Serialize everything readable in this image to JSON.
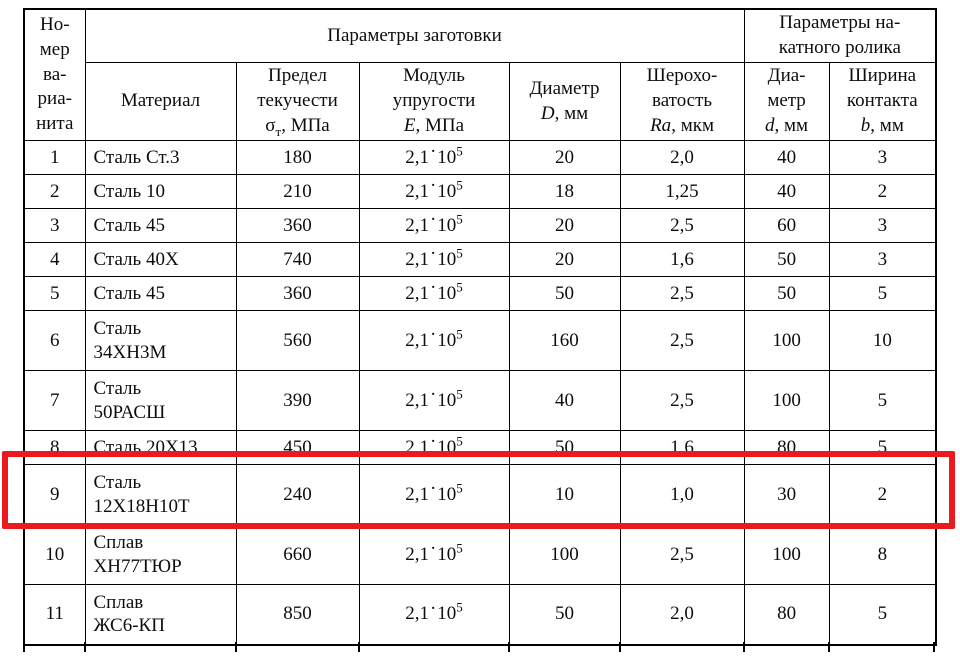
{
  "table": {
    "highlight_color": "#ea1a1f",
    "border_color": "#000000",
    "notation_dot": "·",
    "variant_header": {
      "lines": [
        "Но-",
        "мер",
        "ва-",
        "риа-",
        "нита"
      ]
    },
    "group_headers": [
      {
        "label_lines": [
          "Параметры заготовки"
        ],
        "colspan": 5
      },
      {
        "label_lines": [
          "Параметры на-",
          "катного ролика"
        ],
        "colspan": 2
      }
    ],
    "sub_headers": [
      {
        "lines": [
          "Материал"
        ]
      },
      {
        "lines": [
          "Предел",
          "текучести"
        ],
        "sym": "σ",
        "sym_sub": "т",
        "italic": false,
        "unit": ", МПа"
      },
      {
        "lines": [
          "Модуль",
          "упругости"
        ],
        "sym": "E",
        "italic": true,
        "unit": ", МПа"
      },
      {
        "lines": [
          "Диаметр"
        ],
        "sym": "D",
        "italic": true,
        "unit": ", мм"
      },
      {
        "lines": [
          "Шерохо-",
          "ватость"
        ],
        "sym": "Ra",
        "italic": true,
        "unit": ", мкм"
      },
      {
        "lines": [
          "Диа-",
          "метр"
        ],
        "sym": "d",
        "italic": true,
        "unit": ", мм"
      },
      {
        "lines": [
          "Ширина",
          "контакта"
        ],
        "sym": "b",
        "italic": true,
        "unit": ", мм"
      }
    ],
    "rows": [
      {
        "num": "1",
        "material_lines": [
          "Сталь Ст.3"
        ],
        "yield_strength": "180",
        "modulus": {
          "m": "2,1",
          "x": "10",
          "e": "5"
        },
        "diameter": "20",
        "roughness": "2,0",
        "roller_diameter": "40",
        "contact_width": "3",
        "highlighted": false
      },
      {
        "num": "2",
        "material_lines": [
          "Сталь 10"
        ],
        "yield_strength": "210",
        "modulus": {
          "m": "2,1",
          "x": "10",
          "e": "5"
        },
        "diameter": "18",
        "roughness": "1,25",
        "roller_diameter": "40",
        "contact_width": "2",
        "highlighted": false
      },
      {
        "num": "3",
        "material_lines": [
          "Сталь 45"
        ],
        "yield_strength": "360",
        "modulus": {
          "m": "2,1",
          "x": "10",
          "e": "5"
        },
        "diameter": "20",
        "roughness": "2,5",
        "roller_diameter": "60",
        "contact_width": "3",
        "highlighted": false
      },
      {
        "num": "4",
        "material_lines": [
          "Сталь 40Х"
        ],
        "yield_strength": "740",
        "modulus": {
          "m": "2,1",
          "x": "10",
          "e": "5"
        },
        "diameter": "20",
        "roughness": "1,6",
        "roller_diameter": "50",
        "contact_width": "3",
        "highlighted": false
      },
      {
        "num": "5",
        "material_lines": [
          "Сталь 45"
        ],
        "yield_strength": "360",
        "modulus": {
          "m": "2,1",
          "x": "10",
          "e": "5"
        },
        "diameter": "50",
        "roughness": "2,5",
        "roller_diameter": "50",
        "contact_width": "5",
        "highlighted": false
      },
      {
        "num": "6",
        "material_lines": [
          "Сталь",
          "34ХН3М"
        ],
        "yield_strength": "560",
        "modulus": {
          "m": "2,1",
          "x": "10",
          "e": "5"
        },
        "diameter": "160",
        "roughness": "2,5",
        "roller_diameter": "100",
        "contact_width": "10",
        "highlighted": false
      },
      {
        "num": "7",
        "material_lines": [
          "Сталь",
          "50РАСШ"
        ],
        "yield_strength": "390",
        "modulus": {
          "m": "2,1",
          "x": "10",
          "e": "5"
        },
        "diameter": "40",
        "roughness": "2,5",
        "roller_diameter": "100",
        "contact_width": "5",
        "highlighted": false
      },
      {
        "num": "8",
        "material_lines": [
          "Сталь 20Х13"
        ],
        "yield_strength": "450",
        "modulus": {
          "m": "2,1",
          "x": "10",
          "e": "5"
        },
        "diameter": "50",
        "roughness": "1,6",
        "roller_diameter": "80",
        "contact_width": "5",
        "highlighted": false
      },
      {
        "num": "9",
        "material_lines": [
          "Сталь",
          "12Х18Н10Т"
        ],
        "yield_strength": "240",
        "modulus": {
          "m": "2,1",
          "x": "10",
          "e": "5"
        },
        "diameter": "10",
        "roughness": "1,0",
        "roller_diameter": "30",
        "contact_width": "2",
        "highlighted": true
      },
      {
        "num": "10",
        "material_lines": [
          "Сплав",
          "ХН77ТЮР"
        ],
        "yield_strength": "660",
        "modulus": {
          "m": "2,1",
          "x": "10",
          "e": "5"
        },
        "diameter": "100",
        "roughness": "2,5",
        "roller_diameter": "100",
        "contact_width": "8",
        "highlighted": false
      },
      {
        "num": "11",
        "material_lines": [
          "Сплав",
          "ЖС6-КП"
        ],
        "yield_strength": "850",
        "modulus": {
          "m": "2,1",
          "x": "10",
          "e": "5"
        },
        "diameter": "50",
        "roughness": "2,0",
        "roller_diameter": "80",
        "contact_width": "5",
        "highlighted": false
      }
    ]
  }
}
